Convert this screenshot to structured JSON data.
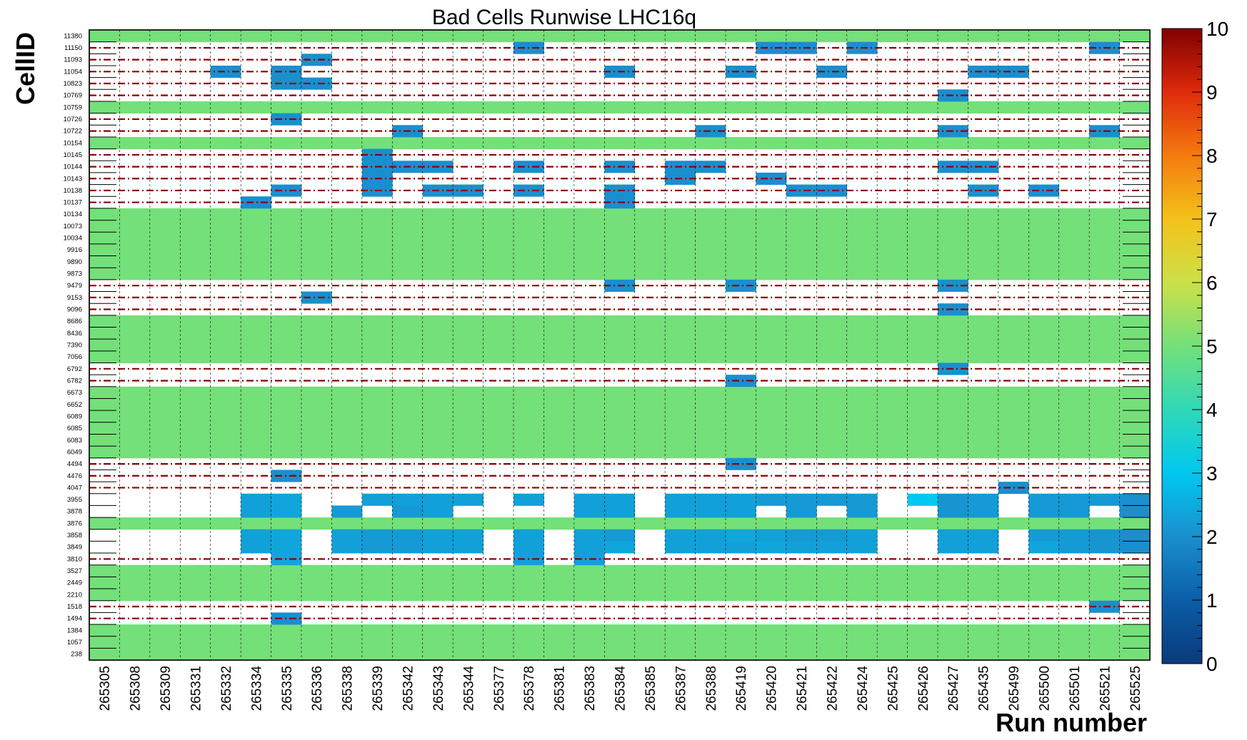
{
  "chart_data": {
    "type": "heatmap",
    "title": "Bad Cells Runwise LHC16q",
    "xlabel": "Run number",
    "ylabel": "CellID",
    "x_categories": [
      "265305",
      "265308",
      "265309",
      "265331",
      "265332",
      "265334",
      "265335",
      "265336",
      "265338",
      "265339",
      "265342",
      "265343",
      "265344",
      "265377",
      "265378",
      "265381",
      "265383",
      "265384",
      "265385",
      "265387",
      "265388",
      "265419",
      "265420",
      "265421",
      "265422",
      "265424",
      "265425",
      "265426",
      "265427",
      "265435",
      "265499",
      "265500",
      "265501",
      "265521",
      "265525"
    ],
    "y_categories": [
      "11380",
      "11150",
      "11093",
      "11054",
      "10823",
      "10769",
      "10759",
      "10726",
      "10722",
      "10154",
      "10145",
      "10144",
      "10143",
      "10138",
      "10137",
      "10134",
      "10073",
      "10034",
      "9916",
      "9890",
      "9873",
      "9479",
      "9153",
      "9096",
      "8686",
      "8436",
      "7390",
      "7056",
      "6792",
      "6782",
      "6673",
      "6652",
      "6089",
      "6085",
      "6083",
      "6049",
      "4494",
      "4476",
      "4047",
      "3955",
      "3878",
      "3876",
      "3858",
      "3849",
      "3810",
      "3527",
      "2449",
      "2210",
      "1518",
      "1494",
      "1384",
      "1057",
      "238"
    ],
    "always_bad_rows": [
      "11380",
      "10759",
      "10154",
      "10134",
      "10073",
      "10034",
      "9916",
      "9890",
      "9873",
      "8686",
      "8436",
      "7390",
      "7056",
      "6673",
      "6652",
      "6089",
      "6085",
      "6083",
      "6049",
      "3876",
      "3527",
      "2449",
      "2210",
      "1384",
      "1057",
      "238"
    ],
    "always_bad_value": 5,
    "cells": [
      [
        "265378",
        "11150",
        2
      ],
      [
        "265420",
        "11150",
        2
      ],
      [
        "265421",
        "11150",
        2
      ],
      [
        "265424",
        "11150",
        2
      ],
      [
        "265521",
        "11150",
        2
      ],
      [
        "265336",
        "11093",
        2
      ],
      [
        "265332",
        "11054",
        2
      ],
      [
        "265335",
        "11054",
        2
      ],
      [
        "265384",
        "11054",
        2
      ],
      [
        "265419",
        "11054",
        2
      ],
      [
        "265422",
        "11054",
        2
      ],
      [
        "265435",
        "11054",
        2
      ],
      [
        "265499",
        "11054",
        2
      ],
      [
        "265335",
        "10823",
        2
      ],
      [
        "265336",
        "10823",
        2
      ],
      [
        "265427",
        "10769",
        2
      ],
      [
        "265335",
        "10726",
        2
      ],
      [
        "265342",
        "10722",
        2
      ],
      [
        "265388",
        "10722",
        2
      ],
      [
        "265427",
        "10722",
        2
      ],
      [
        "265521",
        "10722",
        2
      ],
      [
        "265339",
        "10145",
        2
      ],
      [
        "265339",
        "10144",
        2
      ],
      [
        "265342",
        "10144",
        2
      ],
      [
        "265343",
        "10144",
        2
      ],
      [
        "265378",
        "10144",
        2
      ],
      [
        "265384",
        "10144",
        2
      ],
      [
        "265387",
        "10144",
        2
      ],
      [
        "265388",
        "10144",
        2
      ],
      [
        "265427",
        "10144",
        2
      ],
      [
        "265435",
        "10144",
        2
      ],
      [
        "265339",
        "10143",
        2
      ],
      [
        "265387",
        "10143",
        2
      ],
      [
        "265420",
        "10143",
        2
      ],
      [
        "265335",
        "10138",
        2
      ],
      [
        "265339",
        "10138",
        2
      ],
      [
        "265343",
        "10138",
        2
      ],
      [
        "265344",
        "10138",
        2
      ],
      [
        "265378",
        "10138",
        2
      ],
      [
        "265384",
        "10138",
        2
      ],
      [
        "265421",
        "10138",
        2
      ],
      [
        "265422",
        "10138",
        2
      ],
      [
        "265435",
        "10138",
        2
      ],
      [
        "265500",
        "10138",
        2
      ],
      [
        "265334",
        "10137",
        2
      ],
      [
        "265384",
        "10137",
        2
      ],
      [
        "265384",
        "9479",
        2
      ],
      [
        "265419",
        "9479",
        2
      ],
      [
        "265427",
        "9479",
        2
      ],
      [
        "265336",
        "9153",
        2
      ],
      [
        "265427",
        "9096",
        2
      ],
      [
        "265427",
        "6792",
        2
      ],
      [
        "265419",
        "6782",
        2
      ],
      [
        "265419",
        "4494",
        2
      ],
      [
        "265335",
        "4476",
        2
      ],
      [
        "265499",
        "4047",
        2
      ],
      [
        "265334",
        "3955",
        2.3
      ],
      [
        "265335",
        "3955",
        2.4
      ],
      [
        "265339",
        "3955",
        2.3
      ],
      [
        "265342",
        "3955",
        2.3
      ],
      [
        "265343",
        "3955",
        2.3
      ],
      [
        "265344",
        "3955",
        2.3
      ],
      [
        "265378",
        "3955",
        2.3
      ],
      [
        "265383",
        "3955",
        2.3
      ],
      [
        "265384",
        "3955",
        2.3
      ],
      [
        "265387",
        "3955",
        2.3
      ],
      [
        "265388",
        "3955",
        2.3
      ],
      [
        "265419",
        "3955",
        2.3
      ],
      [
        "265420",
        "3955",
        2.2
      ],
      [
        "265421",
        "3955",
        2.2
      ],
      [
        "265422",
        "3955",
        2.2
      ],
      [
        "265424",
        "3955",
        2.2
      ],
      [
        "265426",
        "3955",
        3
      ],
      [
        "265427",
        "3955",
        2.1
      ],
      [
        "265435",
        "3955",
        2.2
      ],
      [
        "265500",
        "3955",
        2.2
      ],
      [
        "265501",
        "3955",
        2.2
      ],
      [
        "265521",
        "3955",
        2.2
      ],
      [
        "265525",
        "3955",
        2
      ],
      [
        "265334",
        "3878",
        2.3
      ],
      [
        "265335",
        "3878",
        2.4
      ],
      [
        "265338",
        "3878",
        2.2
      ],
      [
        "265342",
        "3878",
        2.2
      ],
      [
        "265343",
        "3878",
        2.3
      ],
      [
        "265383",
        "3878",
        2.3
      ],
      [
        "265384",
        "3878",
        2.3
      ],
      [
        "265387",
        "3878",
        2.3
      ],
      [
        "265388",
        "3878",
        2.3
      ],
      [
        "265419",
        "3878",
        2.3
      ],
      [
        "265421",
        "3878",
        2.2
      ],
      [
        "265424",
        "3878",
        2.2
      ],
      [
        "265427",
        "3878",
        2.1
      ],
      [
        "265435",
        "3878",
        2.2
      ],
      [
        "265500",
        "3878",
        2.2
      ],
      [
        "265501",
        "3878",
        2.2
      ],
      [
        "265525",
        "3878",
        2
      ],
      [
        "265334",
        "3858",
        2.3
      ],
      [
        "265335",
        "3858",
        2.4
      ],
      [
        "265338",
        "3858",
        2.3
      ],
      [
        "265339",
        "3858",
        2.2
      ],
      [
        "265342",
        "3858",
        2.2
      ],
      [
        "265343",
        "3858",
        2.3
      ],
      [
        "265344",
        "3858",
        2.3
      ],
      [
        "265378",
        "3858",
        2.3
      ],
      [
        "265383",
        "3858",
        2.3
      ],
      [
        "265384",
        "3858",
        2.2
      ],
      [
        "265387",
        "3858",
        2.3
      ],
      [
        "265388",
        "3858",
        2.3
      ],
      [
        "265419",
        "3858",
        2.4
      ],
      [
        "265420",
        "3858",
        2.3
      ],
      [
        "265421",
        "3858",
        2.2
      ],
      [
        "265422",
        "3858",
        2.2
      ],
      [
        "265424",
        "3858",
        2.3
      ],
      [
        "265427",
        "3858",
        2.3
      ],
      [
        "265435",
        "3858",
        2.3
      ],
      [
        "265500",
        "3858",
        2.2
      ],
      [
        "265501",
        "3858",
        2.2
      ],
      [
        "265521",
        "3858",
        2.1
      ],
      [
        "265525",
        "3858",
        2
      ],
      [
        "265334",
        "3849",
        2.3
      ],
      [
        "265335",
        "3849",
        2.4
      ],
      [
        "265338",
        "3849",
        2.3
      ],
      [
        "265339",
        "3849",
        2.2
      ],
      [
        "265342",
        "3849",
        2.2
      ],
      [
        "265343",
        "3849",
        2.3
      ],
      [
        "265344",
        "3849",
        2.3
      ],
      [
        "265378",
        "3849",
        2.3
      ],
      [
        "265383",
        "3849",
        2.3
      ],
      [
        "265384",
        "3849",
        2.4
      ],
      [
        "265387",
        "3849",
        2.3
      ],
      [
        "265388",
        "3849",
        2.3
      ],
      [
        "265419",
        "3849",
        2.3
      ],
      [
        "265420",
        "3849",
        2.4
      ],
      [
        "265421",
        "3849",
        2.3
      ],
      [
        "265422",
        "3849",
        2.3
      ],
      [
        "265424",
        "3849",
        2.3
      ],
      [
        "265427",
        "3849",
        2.3
      ],
      [
        "265435",
        "3849",
        2.3
      ],
      [
        "265500",
        "3849",
        2.4
      ],
      [
        "265501",
        "3849",
        2.2
      ],
      [
        "265521",
        "3849",
        2.1
      ],
      [
        "265525",
        "3849",
        2
      ],
      [
        "265335",
        "3810",
        2.4
      ],
      [
        "265378",
        "3810",
        2.3
      ],
      [
        "265383",
        "3810",
        2.3
      ],
      [
        "265521",
        "1518",
        2
      ],
      [
        "265335",
        "1494",
        2
      ]
    ],
    "marked_rows": [
      "11150",
      "11093",
      "11054",
      "10823",
      "10769",
      "10726",
      "10722",
      "10145",
      "10144",
      "10143",
      "10138",
      "10137",
      "9479",
      "9153",
      "9096",
      "6792",
      "6782",
      "4494",
      "4476",
      "4047",
      "3810",
      "1518",
      "1494"
    ],
    "marker_color": "#8b0000",
    "colorbar": {
      "min": 0,
      "max": 10,
      "ticks": [
        "0",
        "1",
        "2",
        "3",
        "4",
        "5",
        "6",
        "7",
        "8",
        "9",
        "10"
      ],
      "stops": [
        "#0a3a7a",
        "#0b5ea8",
        "#1a8fce",
        "#00c8f0",
        "#30d8b8",
        "#74e07a",
        "#cce048",
        "#f4c21a",
        "#f47b0e",
        "#e02a0c",
        "#800000"
      ]
    },
    "grid": true
  }
}
